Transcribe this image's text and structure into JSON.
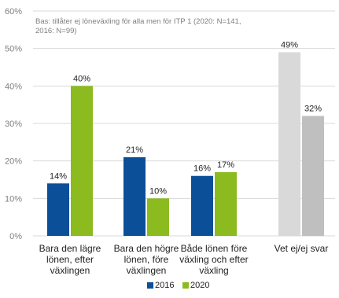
{
  "chart_data": {
    "type": "bar",
    "note": [
      "Bas: tillåter ej löneväxling för alla men för ITP 1 (2020: N=141,",
      "2016: N=99)"
    ],
    "categories": [
      [
        "Bara den lägre",
        "lönen, efter",
        "växlingen"
      ],
      [
        "Bara den högre",
        "lönen, före",
        "växlingen"
      ],
      [
        "Både lönen före",
        "växling och efter",
        "växling"
      ],
      [
        "Vet ej/ej svar"
      ]
    ],
    "series": [
      {
        "name": "2016",
        "values": [
          14,
          21,
          16,
          49
        ],
        "labels": [
          "14%",
          "21%",
          "16%",
          "49%"
        ]
      },
      {
        "name": "2020",
        "values": [
          40,
          10,
          17,
          32
        ],
        "labels": [
          "40%",
          "10%",
          "17%",
          "32%"
        ]
      }
    ],
    "series_colors": [
      "#0b4f98",
      "#8bbb1f"
    ],
    "special_category_colors": [
      "#d9d9d9",
      "#bfbfbf"
    ],
    "y_ticks": [
      "0%",
      "10%",
      "20%",
      "30%",
      "40%",
      "50%",
      "60%"
    ],
    "ylim": [
      0,
      60
    ],
    "grid": true,
    "legend_position": "bottom"
  }
}
